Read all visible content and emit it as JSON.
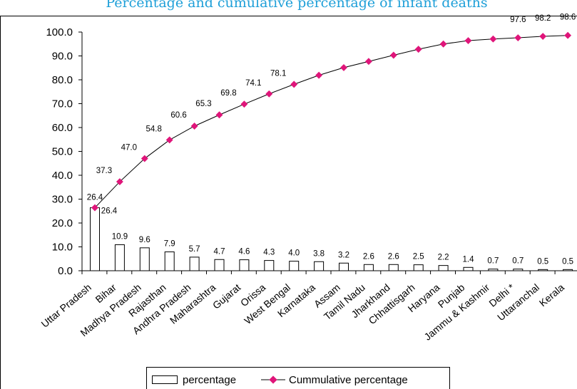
{
  "chart_data": {
    "type": "bar",
    "title": "Percentage and cumulative percentage of infant deaths",
    "categories": [
      "Uttar Pradesh",
      "Bihar",
      "Madhya Pradesh",
      "Rajasthan",
      "Andhra Pradesh",
      "Maharashtra",
      "Gujarat",
      "Orissa",
      "West Bengal",
      "Karnataka",
      "Assam",
      "Tamil Nadu",
      "Jharkhand",
      "Chhattisgarh",
      "Haryana",
      "Punjab",
      "Jammu & Kashmir",
      "Delhi *",
      "Uttaranchal",
      "Kerala"
    ],
    "series": [
      {
        "name": "percentage",
        "type": "bar",
        "color": "#ffffff",
        "values": [
          26.4,
          10.9,
          9.6,
          7.9,
          5.7,
          4.7,
          4.6,
          4.3,
          4.0,
          3.8,
          3.2,
          2.6,
          2.6,
          2.5,
          2.2,
          1.4,
          0.7,
          0.7,
          0.5,
          0.5
        ],
        "labels": [
          "26.4",
          "10.9",
          "9.6",
          "7.9",
          "5.7",
          "4.7",
          "4.6",
          "4.3",
          "4.0",
          "3.8",
          "3.2",
          "2.6",
          "2.6",
          "2.5",
          "2.2",
          "1.4",
          "0.7",
          "0.7",
          "0.5",
          "0.5"
        ]
      },
      {
        "name": "Cummulative percentage",
        "type": "line",
        "color": "#e0157a",
        "values": [
          26.4,
          37.3,
          47.0,
          54.8,
          60.6,
          65.3,
          69.8,
          74.1,
          78.1,
          81.9,
          85.1,
          87.7,
          90.3,
          92.8,
          95.0,
          96.4,
          97.1,
          97.6,
          98.2,
          98.6
        ],
        "labels": [
          "26.4",
          "37.3",
          "47.0",
          "54.8",
          "60.6",
          "65.3",
          "69.8",
          "74.1",
          "78.1",
          "",
          "",
          "",
          "",
          "",
          "",
          "",
          "",
          "97.6",
          "98.2",
          "98.6"
        ]
      }
    ],
    "y_ticks": [
      "0.0",
      "10.0",
      "20.0",
      "30.0",
      "40.0",
      "50.0",
      "60.0",
      "70.0",
      "80.0",
      "90.0",
      "100.0"
    ],
    "ylim": [
      0,
      100
    ],
    "xlabel": "",
    "ylabel": "",
    "legend": "bottom-center",
    "grid": false
  }
}
